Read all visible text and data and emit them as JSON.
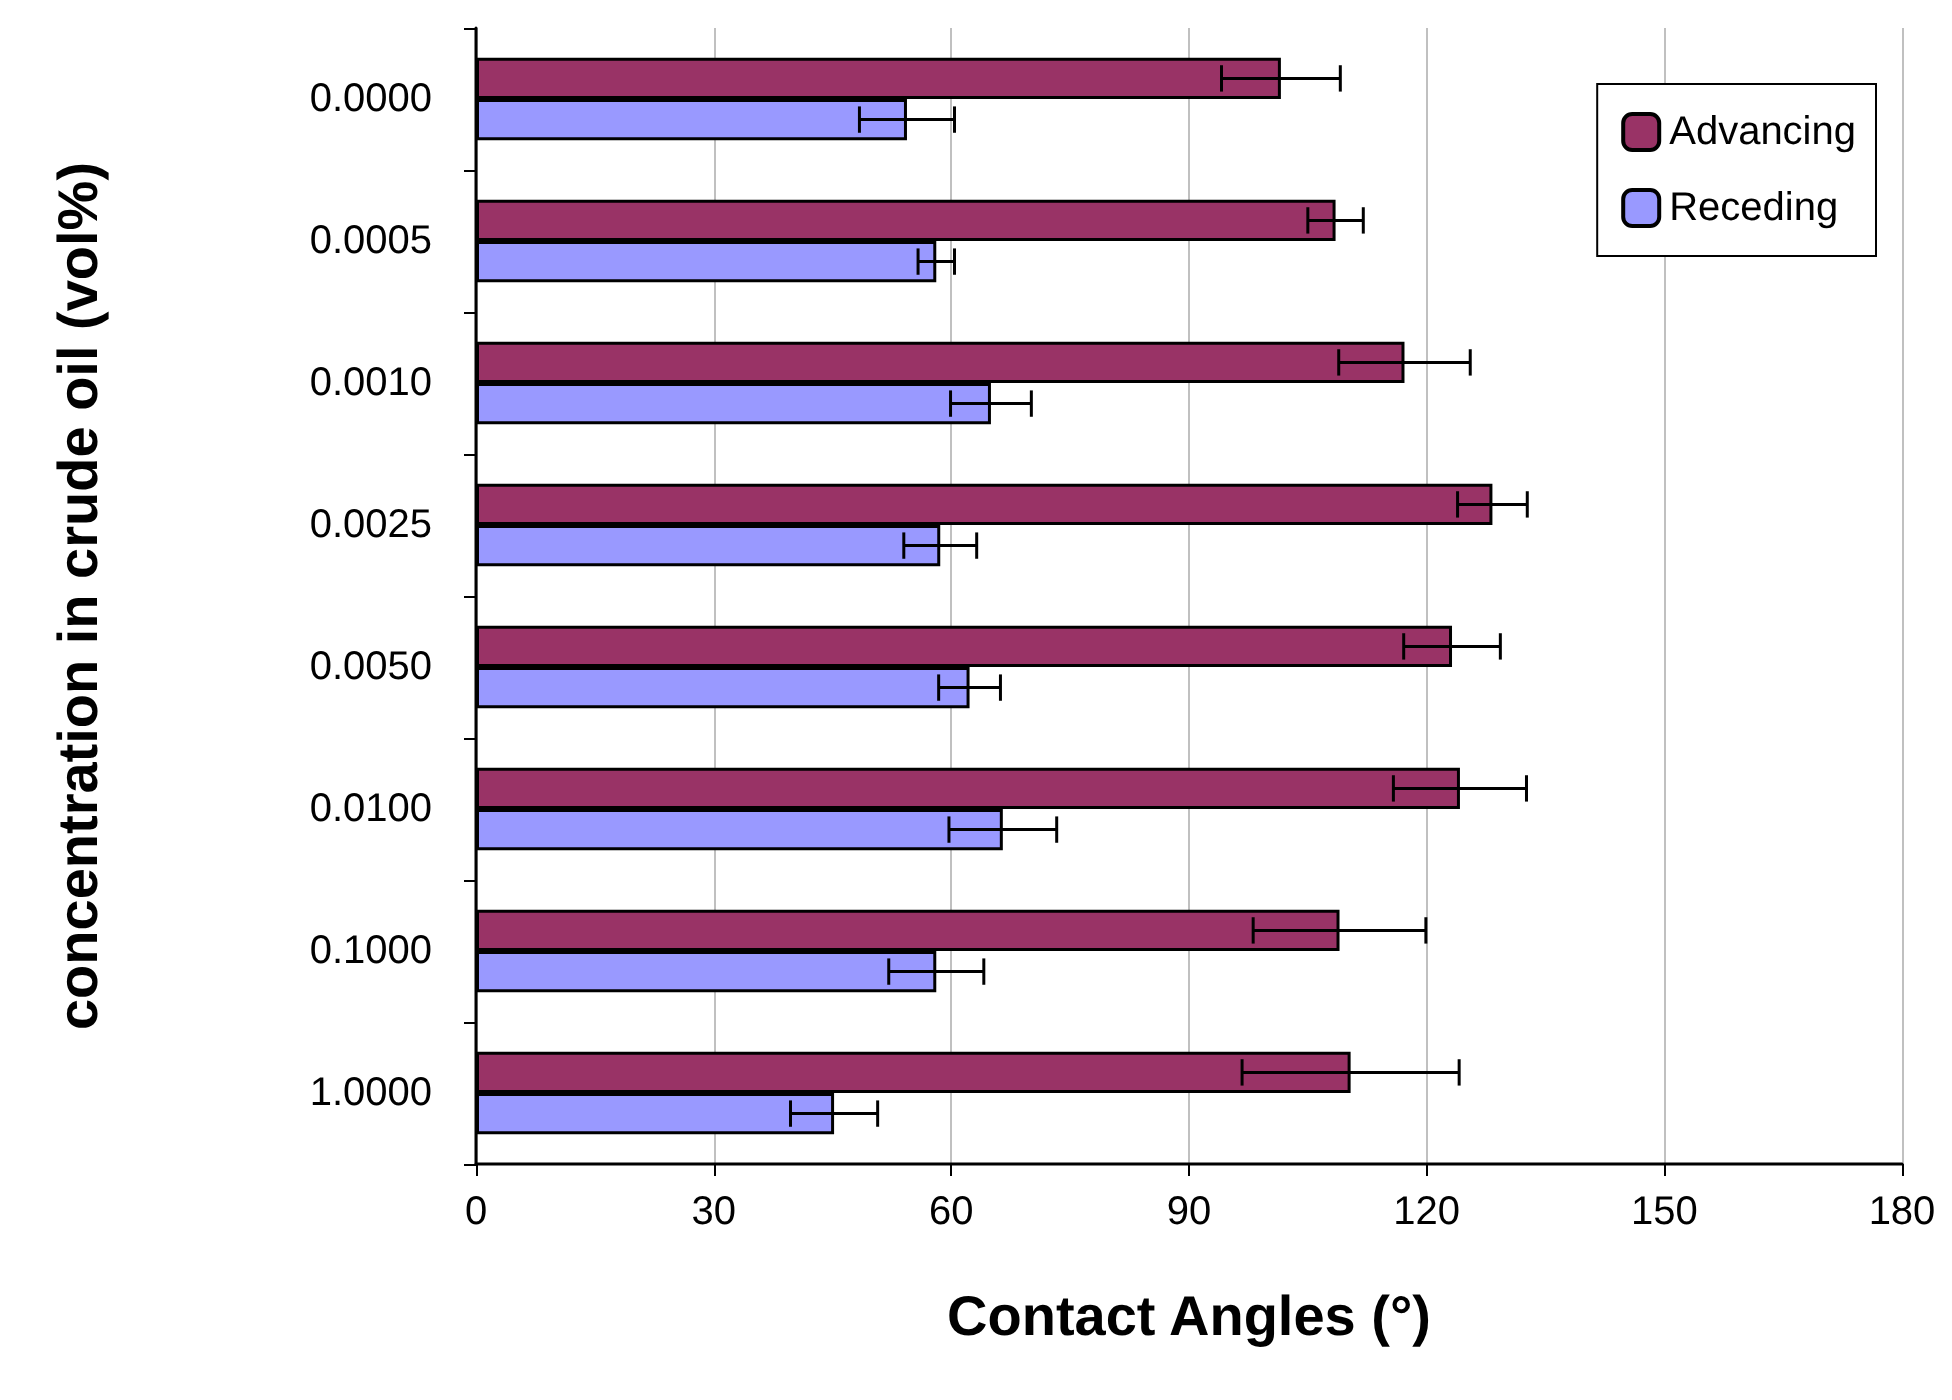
{
  "chart_data": {
    "type": "bar",
    "orientation": "horizontal",
    "xlabel": "Contact Angles (°)",
    "ylabel": "concentration in crude oil (vol%)",
    "categories": [
      "0.0000",
      "0.0005",
      "0.0010",
      "0.0025",
      "0.0050",
      "0.0100",
      "0.1000",
      "1.0000"
    ],
    "series": [
      {
        "name": "Advancing",
        "color": "#993366",
        "values": [
          101.6,
          108.5,
          117.2,
          128.3,
          123.2,
          124.2,
          109.0,
          110.4
        ],
        "errors": [
          7.5,
          3.5,
          8.3,
          4.4,
          6.1,
          8.4,
          10.9,
          13.7
        ]
      },
      {
        "name": "Receding",
        "color": "#9999ff",
        "values": [
          54.4,
          58.1,
          65.0,
          58.6,
          62.3,
          66.5,
          58.1,
          45.2
        ],
        "errors": [
          6.0,
          2.3,
          5.1,
          4.6,
          3.9,
          6.8,
          6.0,
          5.5
        ]
      }
    ],
    "xlim": [
      0,
      180
    ],
    "xticks": [
      0,
      30,
      60,
      90,
      120,
      150,
      180
    ],
    "grid": "x",
    "legend": "top right"
  }
}
